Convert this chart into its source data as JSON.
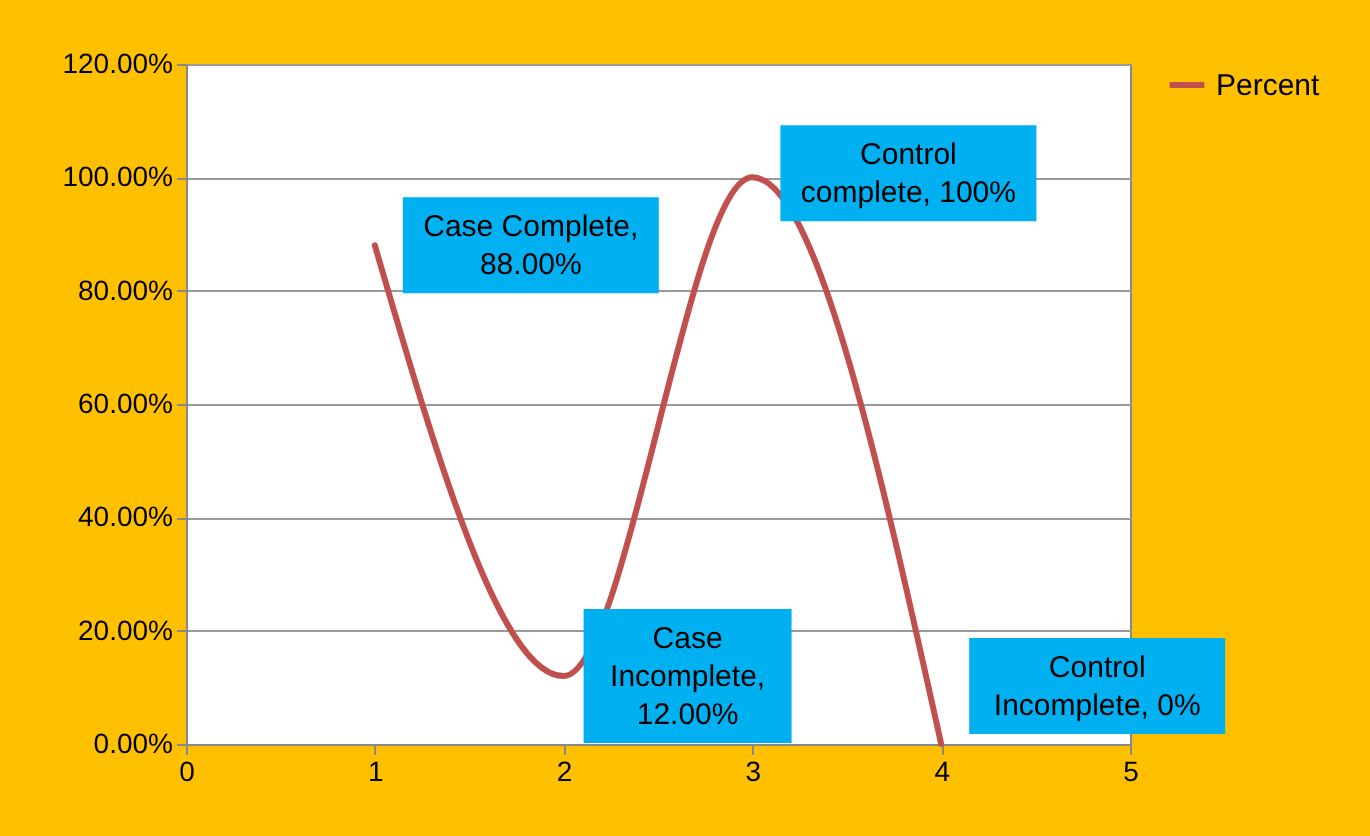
{
  "chart_data": {
    "type": "line",
    "x": [
      1,
      2,
      3,
      4
    ],
    "series": [
      {
        "name": "Percent",
        "color": "#c0504d",
        "values": [
          88,
          12,
          100,
          0
        ]
      }
    ],
    "xlim": [
      0,
      5
    ],
    "xticks": [
      0,
      1,
      2,
      3,
      4,
      5
    ],
    "ylim": [
      0,
      120
    ],
    "yticks": [
      {
        "value": 0,
        "label": "0.00%"
      },
      {
        "value": 20,
        "label": "20.00%"
      },
      {
        "value": 40,
        "label": "40.00%"
      },
      {
        "value": 60,
        "label": "60.00%"
      },
      {
        "value": 80,
        "label": "80.00%"
      },
      {
        "value": 100,
        "label": "100.00%"
      },
      {
        "value": 120,
        "label": "120.00%"
      }
    ],
    "grid": "y",
    "legend": "right",
    "marker": "none",
    "line_style": "solid",
    "annotations": [
      {
        "text": "Case Complete, 88.00%",
        "x": 1,
        "y": 88
      },
      {
        "text": "Case Incomplete, 12.00%",
        "x": 2,
        "y": 12
      },
      {
        "text": "Control complete, 100%",
        "x": 3,
        "y": 100
      },
      {
        "text": "Control Incomplete, 0%",
        "x": 4,
        "y": 0
      }
    ]
  }
}
